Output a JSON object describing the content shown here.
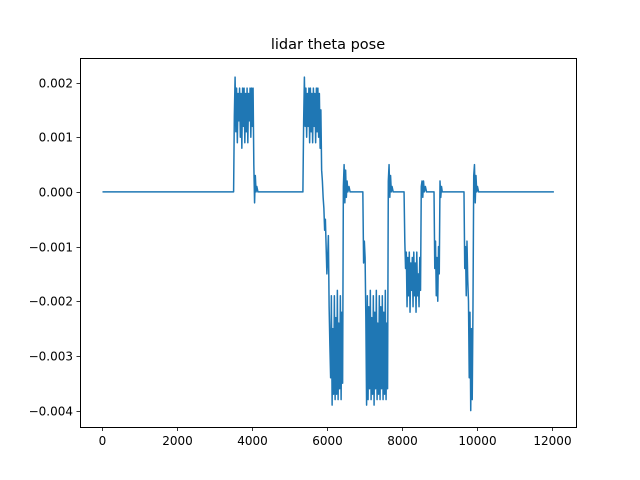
{
  "chart_data": {
    "type": "line",
    "title": "lidar theta pose",
    "xlabel": "",
    "ylabel": "",
    "xlim": [
      -600,
      12640
    ],
    "ylim": [
      -0.0043,
      0.00245
    ],
    "grid": false,
    "legend": null,
    "x_ticks": [
      0,
      2000,
      4000,
      6000,
      8000,
      10000,
      12000
    ],
    "x_tick_labels": [
      "0",
      "2000",
      "4000",
      "6000",
      "8000",
      "10000",
      "12000"
    ],
    "y_ticks": [
      0.002,
      0.001,
      0.0,
      -0.001,
      -0.002,
      -0.003,
      -0.004
    ],
    "y_tick_labels": [
      "0.002",
      "0.001",
      "0.000",
      "−0.001",
      "−0.002",
      "−0.003",
      "−0.004"
    ],
    "series": [
      {
        "color": "#1f77b4",
        "points": [
          [
            0,
            0.0
          ],
          [
            3500,
            0.0
          ],
          [
            3520,
            0.0014
          ],
          [
            3540,
            0.0021
          ],
          [
            3560,
            0.0011
          ],
          [
            3580,
            0.0019
          ],
          [
            3600,
            0.0009
          ],
          [
            3620,
            0.0018
          ],
          [
            3640,
            0.0013
          ],
          [
            3660,
            0.0019
          ],
          [
            3680,
            0.001
          ],
          [
            3700,
            0.0018
          ],
          [
            3720,
            0.0008
          ],
          [
            3740,
            0.0019
          ],
          [
            3760,
            0.0012
          ],
          [
            3780,
            0.0019
          ],
          [
            3800,
            0.0009
          ],
          [
            3820,
            0.0018
          ],
          [
            3840,
            0.0011
          ],
          [
            3860,
            0.0019
          ],
          [
            3880,
            0.0009
          ],
          [
            3900,
            0.0018
          ],
          [
            3920,
            0.0013
          ],
          [
            3940,
            0.0019
          ],
          [
            3960,
            0.001
          ],
          [
            3980,
            0.0019
          ],
          [
            4000,
            0.0012
          ],
          [
            4020,
            0.0019
          ],
          [
            4040,
            0.0005
          ],
          [
            4060,
            -0.0002
          ],
          [
            4080,
            0.0003
          ],
          [
            4100,
            0.0
          ],
          [
            4120,
            0.0001
          ],
          [
            4150,
            0.0
          ],
          [
            5350,
            0.0
          ],
          [
            5370,
            0.0013
          ],
          [
            5390,
            0.0021
          ],
          [
            5410,
            0.0012
          ],
          [
            5430,
            0.0019
          ],
          [
            5450,
            0.001
          ],
          [
            5470,
            0.0018
          ],
          [
            5490,
            0.0012
          ],
          [
            5510,
            0.0019
          ],
          [
            5530,
            0.0009
          ],
          [
            5550,
            0.0019
          ],
          [
            5570,
            0.0011
          ],
          [
            5590,
            0.0018
          ],
          [
            5610,
            0.0009
          ],
          [
            5630,
            0.0019
          ],
          [
            5650,
            0.0012
          ],
          [
            5670,
            0.0018
          ],
          [
            5690,
            0.0009
          ],
          [
            5710,
            0.0019
          ],
          [
            5730,
            0.0011
          ],
          [
            5750,
            0.0019
          ],
          [
            5770,
            0.001
          ],
          [
            5790,
            0.0018
          ],
          [
            5810,
            0.0008
          ],
          [
            5830,
            0.0015
          ],
          [
            5850,
            0.0004
          ],
          [
            5870,
            0.0002
          ],
          [
            5890,
            -0.0001
          ],
          [
            5910,
            -0.0003
          ],
          [
            5930,
            -0.0007
          ],
          [
            5950,
            -0.0005
          ],
          [
            5970,
            -0.001
          ],
          [
            5990,
            -0.0015
          ],
          [
            6010,
            -0.0012
          ],
          [
            6030,
            -0.0008
          ],
          [
            6050,
            -0.0021
          ],
          [
            6070,
            -0.0028
          ],
          [
            6090,
            -0.0034
          ],
          [
            6110,
            -0.0019
          ],
          [
            6130,
            -0.0039
          ],
          [
            6150,
            -0.0025
          ],
          [
            6170,
            -0.0037
          ],
          [
            6190,
            -0.0019
          ],
          [
            6210,
            -0.0038
          ],
          [
            6230,
            -0.0023
          ],
          [
            6250,
            -0.0037
          ],
          [
            6270,
            -0.0018
          ],
          [
            6290,
            -0.0038
          ],
          [
            6310,
            -0.0024
          ],
          [
            6330,
            -0.0036
          ],
          [
            6350,
            -0.0019
          ],
          [
            6370,
            -0.0038
          ],
          [
            6390,
            -0.0022
          ],
          [
            6410,
            -0.0035
          ],
          [
            6430,
            0.0001
          ],
          [
            6450,
            0.0005
          ],
          [
            6470,
            -0.0002
          ],
          [
            6490,
            0.0004
          ],
          [
            6510,
            -0.0001
          ],
          [
            6530,
            0.0002
          ],
          [
            6550,
            0.0
          ],
          [
            6580,
            0.0001
          ],
          [
            6610,
            0.0
          ],
          [
            6950,
            0.0
          ],
          [
            6970,
            -0.0013
          ],
          [
            6990,
            -0.0009
          ],
          [
            7010,
            -0.0012
          ],
          [
            7030,
            -0.0023
          ],
          [
            7050,
            -0.0039
          ],
          [
            7070,
            -0.0019
          ],
          [
            7090,
            -0.0038
          ],
          [
            7110,
            -0.0021
          ],
          [
            7130,
            -0.0036
          ],
          [
            7150,
            -0.0018
          ],
          [
            7170,
            -0.0038
          ],
          [
            7190,
            -0.0023
          ],
          [
            7210,
            -0.0037
          ],
          [
            7230,
            -0.0019
          ],
          [
            7250,
            -0.0039
          ],
          [
            7270,
            -0.0022
          ],
          [
            7290,
            -0.0036
          ],
          [
            7310,
            -0.0018
          ],
          [
            7330,
            -0.0038
          ],
          [
            7350,
            -0.0024
          ],
          [
            7370,
            -0.0037
          ],
          [
            7390,
            -0.0019
          ],
          [
            7410,
            -0.0038
          ],
          [
            7430,
            -0.0021
          ],
          [
            7450,
            -0.0036
          ],
          [
            7470,
            -0.0019
          ],
          [
            7490,
            -0.0038
          ],
          [
            7510,
            -0.0022
          ],
          [
            7530,
            -0.0037
          ],
          [
            7550,
            -0.0018
          ],
          [
            7570,
            -0.0038
          ],
          [
            7590,
            -0.0024
          ],
          [
            7610,
            -0.0036
          ],
          [
            7630,
            0.0002
          ],
          [
            7650,
            0.0005
          ],
          [
            7670,
            -0.0001
          ],
          [
            7690,
            0.0003
          ],
          [
            7710,
            0.0
          ],
          [
            7730,
            0.0001
          ],
          [
            7760,
            0.0
          ],
          [
            8050,
            0.0
          ],
          [
            8070,
            -0.0009
          ],
          [
            8090,
            -0.0014
          ],
          [
            8110,
            -0.0011
          ],
          [
            8130,
            -0.0021
          ],
          [
            8150,
            -0.0012
          ],
          [
            8170,
            -0.0019
          ],
          [
            8190,
            -0.0011
          ],
          [
            8210,
            -0.0022
          ],
          [
            8230,
            -0.0013
          ],
          [
            8250,
            -0.0018
          ],
          [
            8270,
            -0.0012
          ],
          [
            8290,
            -0.0021
          ],
          [
            8310,
            -0.0011
          ],
          [
            8330,
            -0.0019
          ],
          [
            8350,
            -0.0013
          ],
          [
            8370,
            -0.0022
          ],
          [
            8390,
            -0.0011
          ],
          [
            8410,
            -0.0019
          ],
          [
            8430,
            -0.0015
          ],
          [
            8450,
            -0.0021
          ],
          [
            8470,
            -0.0012
          ],
          [
            8490,
            -0.0018
          ],
          [
            8510,
            0.0001
          ],
          [
            8530,
            0.0002
          ],
          [
            8550,
            -0.0001
          ],
          [
            8570,
            0.0002
          ],
          [
            8590,
            0.0
          ],
          [
            8620,
            0.0001
          ],
          [
            8650,
            0.0
          ],
          [
            8850,
            0.0
          ],
          [
            8870,
            -0.0014
          ],
          [
            8890,
            -0.0009
          ],
          [
            8910,
            -0.0019
          ],
          [
            8930,
            -0.0012
          ],
          [
            8950,
            -0.002
          ],
          [
            8970,
            -0.001
          ],
          [
            8990,
            -0.0015
          ],
          [
            9010,
            0.0002
          ],
          [
            9030,
            -0.0001
          ],
          [
            9050,
            0.0001
          ],
          [
            9070,
            0.0
          ],
          [
            9650,
            0.0
          ],
          [
            9670,
            -0.0014
          ],
          [
            9690,
            -0.001
          ],
          [
            9710,
            -0.0019
          ],
          [
            9730,
            -0.0009
          ],
          [
            9750,
            -0.0016
          ],
          [
            9770,
            -0.002
          ],
          [
            9790,
            -0.0034
          ],
          [
            9810,
            -0.0022
          ],
          [
            9830,
            -0.004
          ],
          [
            9850,
            -0.0025
          ],
          [
            9870,
            -0.0038
          ],
          [
            9890,
            -0.0021
          ],
          [
            9910,
            0.0003
          ],
          [
            9930,
            0.0005
          ],
          [
            9950,
            -0.0002
          ],
          [
            9970,
            0.0003
          ],
          [
            9990,
            0.0
          ],
          [
            10010,
            0.0001
          ],
          [
            10040,
            0.0
          ],
          [
            12050,
            0.0
          ]
        ]
      }
    ]
  }
}
